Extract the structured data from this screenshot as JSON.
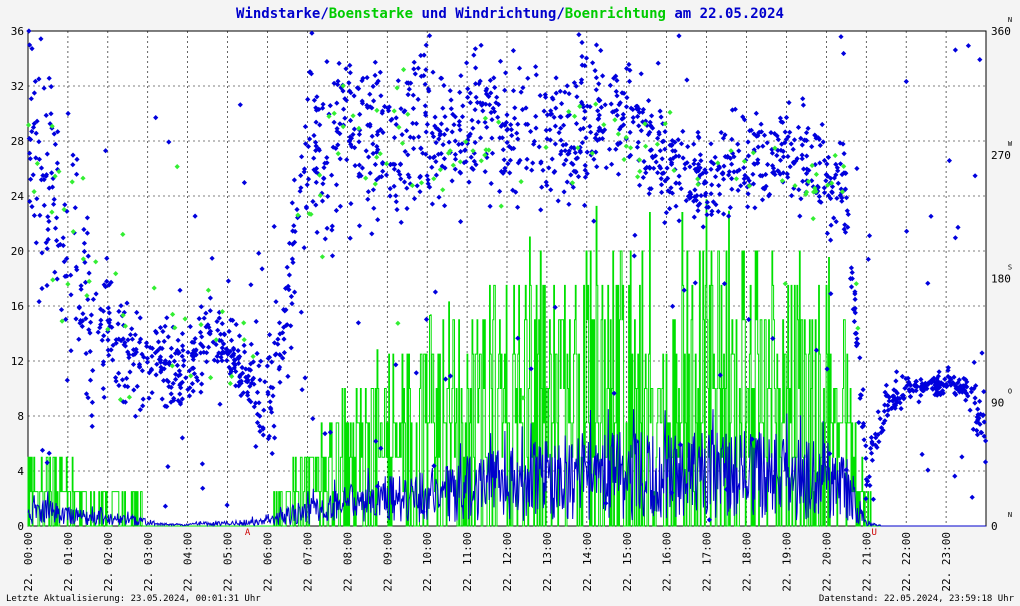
{
  "title": {
    "parts": [
      {
        "text": "Windstarke",
        "color": "#0000cc"
      },
      {
        "text": "/",
        "color": "#0000cc"
      },
      {
        "text": "Boenstarke",
        "color": "#00cc00"
      },
      {
        "text": " und ",
        "color": "#0000cc"
      },
      {
        "text": "Windrichtung",
        "color": "#0000cc"
      },
      {
        "text": "/",
        "color": "#0000cc"
      },
      {
        "text": "Boenrichtung",
        "color": "#00cc00"
      },
      {
        "text": " am 22.05.2024",
        "color": "#0000cc"
      }
    ]
  },
  "footer": {
    "left": "Letzte Aktualisierung: 23.05.2024, 00:01:31 Uhr",
    "right": "Datenstand: 22.05.2024, 23:59:18 Uhr"
  },
  "chart_data": {
    "type": "line",
    "x_range_hours": [
      0,
      24
    ],
    "x_tick_labels": [
      "22. 00:00",
      "22. 01:00",
      "22. 02:00",
      "22. 03:00",
      "22. 04:00",
      "22. 05:00",
      "22. 06:00",
      "22. 07:00",
      "22. 08:00",
      "22. 09:00",
      "22. 10:00",
      "22. 11:00",
      "22. 12:00",
      "22. 13:00",
      "22. 14:00",
      "22. 15:00",
      "22. 16:00",
      "22. 17:00",
      "22. 18:00",
      "22. 19:00",
      "22. 20:00",
      "22. 21:00",
      "22. 22:00",
      "22. 23:00"
    ],
    "y_left": {
      "range": [
        0,
        36
      ],
      "ticks": [
        "0",
        "4",
        "8",
        "12",
        "16",
        "20",
        "24",
        "28",
        "32",
        "36"
      ]
    },
    "y_right": {
      "range": [
        0,
        360
      ],
      "ticks": [
        "0",
        "90",
        "180",
        "270",
        "360"
      ],
      "compass": [
        "N",
        "O",
        "S",
        "W",
        "N"
      ]
    },
    "markers": [
      {
        "label": "A",
        "hour": 5.5
      },
      {
        "label": "U",
        "hour": 21.2
      }
    ],
    "grid": true,
    "colors": {
      "wind": "#0000cc",
      "gust": "#00e000",
      "direction": "#0000dd",
      "gust_direction": "#33ee33",
      "marker": "#cc0000"
    },
    "series": [
      {
        "name": "Windstarke",
        "kind": "line",
        "profile_hours": [
          0,
          0.5,
          1,
          1.5,
          2,
          2.5,
          3,
          3.5,
          4,
          4.5,
          5,
          5.5,
          6,
          6.5,
          7,
          7.5,
          8,
          8.5,
          9,
          9.5,
          10,
          10.5,
          11,
          11.5,
          12,
          12.5,
          13,
          13.5,
          14,
          14.5,
          15,
          15.5,
          16,
          16.5,
          17,
          17.5,
          18,
          18.5,
          19,
          19.5,
          20,
          20.5,
          21,
          21.5,
          22,
          22.5,
          23,
          23.5,
          24
        ],
        "profile_mean": [
          1.0,
          1.2,
          0.8,
          0.7,
          0.6,
          0.5,
          0.3,
          0.1,
          0.1,
          0.2,
          0.2,
          0.3,
          0.4,
          0.8,
          1.2,
          1.5,
          1.8,
          2.0,
          2.2,
          2.3,
          2.5,
          2.6,
          3.0,
          3.2,
          3.3,
          3.5,
          3.8,
          3.9,
          4.0,
          4.1,
          4.2,
          4.1,
          4.0,
          4.1,
          4.2,
          4.0,
          4.3,
          4.1,
          3.9,
          3.8,
          3.6,
          3.2,
          0.2,
          0.0,
          0.0,
          0.0,
          0.0,
          0.0,
          0.0
        ],
        "peak": 8.5
      },
      {
        "name": "Boenstarke",
        "kind": "line",
        "profile_hours": [
          0,
          0.5,
          1,
          1.5,
          2,
          2.5,
          3,
          3.5,
          4,
          4.5,
          5,
          5.5,
          6,
          6.5,
          7,
          7.5,
          8,
          8.5,
          9,
          9.5,
          10,
          10.5,
          11,
          11.5,
          12,
          12.5,
          13,
          13.5,
          14,
          14.5,
          15,
          15.5,
          16,
          16.5,
          17,
          17.5,
          18,
          18.5,
          19,
          19.5,
          20,
          20.5,
          21,
          21.5,
          22,
          22.5,
          23,
          23.5,
          24
        ],
        "profile_mean": [
          3.0,
          3.5,
          2.5,
          2.0,
          1.5,
          1.2,
          0.8,
          0.3,
          0.2,
          0.3,
          0.2,
          0.4,
          0.8,
          2.0,
          3.5,
          4.5,
          5.5,
          6.5,
          7.0,
          7.5,
          8.0,
          8.5,
          9.5,
          10.0,
          10.5,
          11.0,
          11.5,
          12.0,
          12.0,
          12.5,
          12.5,
          12.0,
          12.0,
          12.0,
          12.5,
          12.0,
          12.5,
          12.0,
          11.5,
          11.0,
          10.5,
          8.5,
          1.0,
          0.0,
          0.2,
          0.0,
          0.0,
          0.2,
          0.0
        ],
        "peak": 24.0
      },
      {
        "name": "Windrichtung",
        "kind": "scatter",
        "unit": "deg",
        "profile_hours": [
          0,
          1,
          1.5,
          2,
          3,
          4,
          4.5,
          5,
          5.5,
          6,
          6.5,
          7,
          8,
          9,
          10,
          11,
          12,
          13,
          14,
          15,
          16,
          17,
          18,
          19,
          20,
          20.5,
          21,
          21.5,
          22,
          22.5,
          23,
          23.5,
          24
        ],
        "profile_mean": [
          290,
          200,
          160,
          140,
          120,
          110,
          140,
          130,
          110,
          80,
          150,
          280,
          290,
          270,
          285,
          295,
          285,
          280,
          290,
          300,
          260,
          250,
          265,
          270,
          255,
          245,
          40,
          90,
          100,
          100,
          105,
          100,
          70
        ],
        "spread": [
          60,
          80,
          60,
          40,
          30,
          25,
          20,
          15,
          20,
          30,
          60,
          50,
          50,
          45,
          40,
          35,
          40,
          40,
          40,
          30,
          25,
          25,
          25,
          25,
          30,
          30,
          15,
          10,
          6,
          6,
          6,
          6,
          20
        ]
      },
      {
        "name": "Boenrichtung",
        "kind": "scatter",
        "unit": "deg",
        "profile_hours": [
          0,
          2,
          4,
          6,
          8,
          10,
          12,
          14,
          16,
          18,
          20,
          20.5,
          21
        ],
        "profile_mean": [
          260,
          170,
          120,
          150,
          290,
          285,
          280,
          295,
          265,
          260,
          250,
          240,
          90
        ],
        "spread": [
          50,
          60,
          30,
          40,
          40,
          40,
          35,
          30,
          25,
          25,
          25,
          25,
          10
        ]
      }
    ]
  }
}
